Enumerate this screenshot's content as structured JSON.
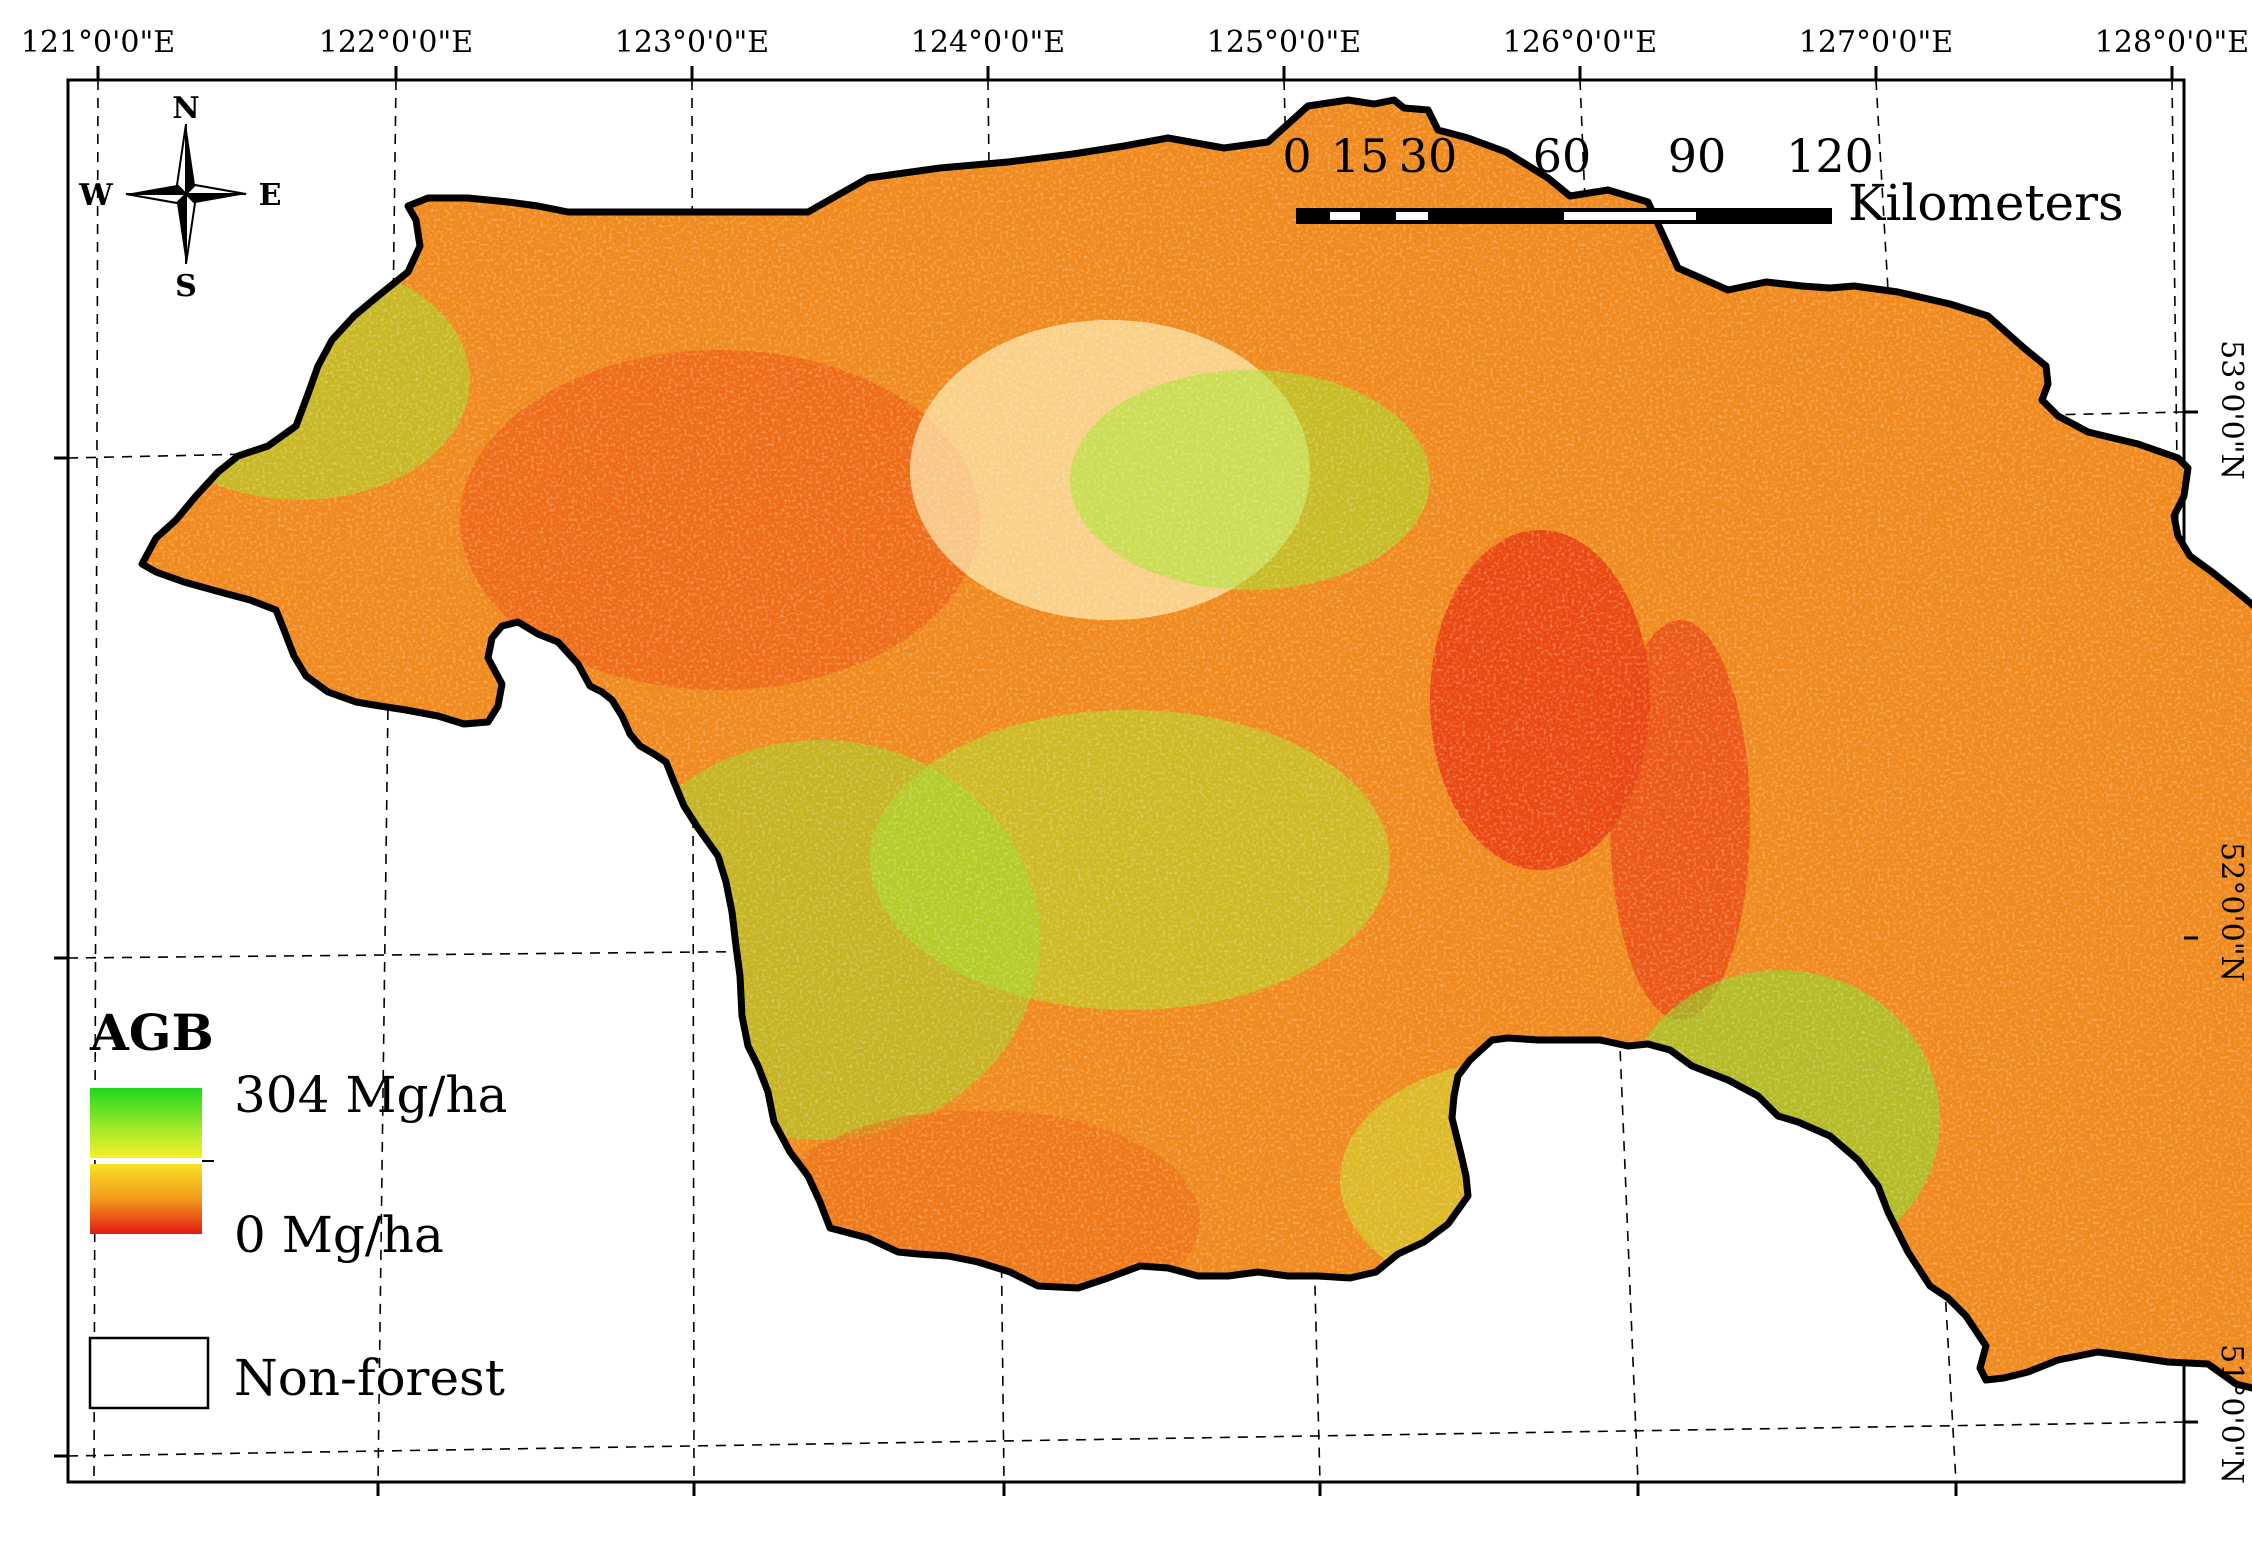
{
  "lon_labels": [
    "121°0'0\"E",
    "122°0'0\"E",
    "123°0'0\"E",
    "124°0'0\"E",
    "125°0'0\"E",
    "126°0'0\"E",
    "127°0'0\"E",
    "128°0'0\"E"
  ],
  "lat_labels": [
    "53°0'0\"N",
    "52°0'0\"N",
    "51°0'0\"N"
  ],
  "north_arrow": {
    "n": "N",
    "s": "S",
    "e": "E",
    "w": "W"
  },
  "scale_bar": {
    "ticks": [
      "0",
      "15",
      "30",
      "60",
      "90",
      "120"
    ],
    "unit": "Kilometers"
  },
  "legend": {
    "title": "AGB",
    "max_label": "304 Mg/ha",
    "min_label": "0 Mg/ha",
    "nonforest_label": "Non-forest"
  },
  "colors": {
    "agb_high": "#2fe02f",
    "agb_mid": "#f7f020",
    "agb_low": "#f7a020",
    "agb_min": "#e62010",
    "nonforest": "#ffffff",
    "boundary": "#000000"
  }
}
